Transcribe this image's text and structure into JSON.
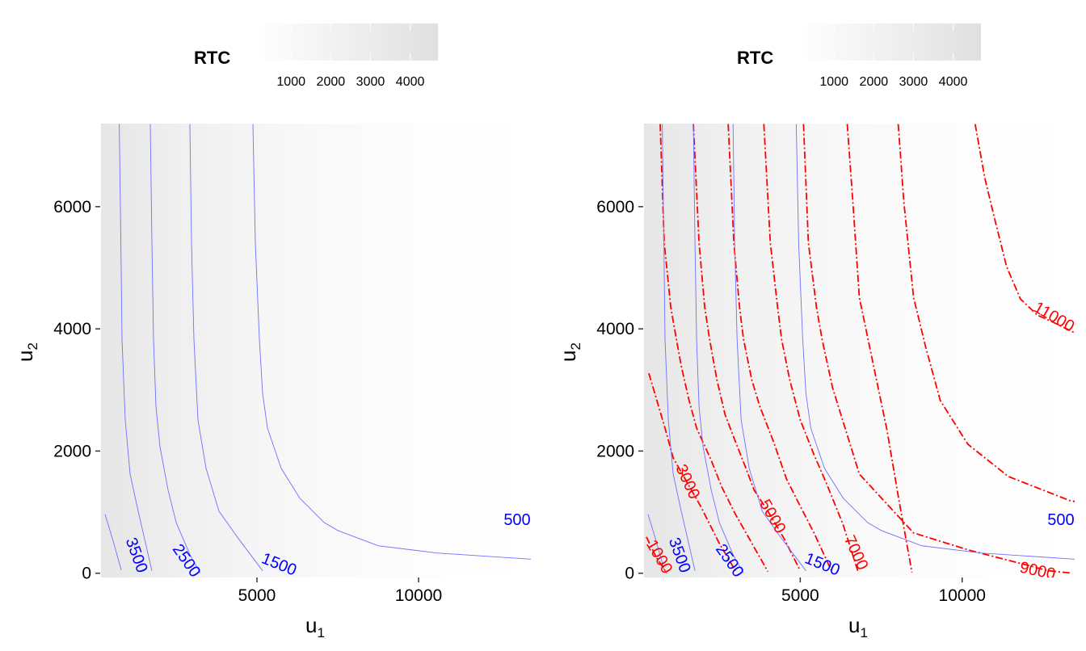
{
  "chart_data": [
    {
      "type": "contour",
      "legend": {
        "title": "RTC",
        "ticks": [
          "1000",
          "2000",
          "3000",
          "4000"
        ],
        "range": [
          100,
          4700
        ],
        "low_color": "#ffffff",
        "high_color": "#e0e0e0",
        "placement": "top"
      },
      "xlabel": {
        "text": "u",
        "sub": "1"
      },
      "ylabel": {
        "text": "u",
        "sub": "2"
      },
      "xlim": [
        175,
        13475
      ],
      "ylim": [
        -70,
        7360
      ],
      "xticks": [
        {
          "v": 5000,
          "label": "5000"
        },
        {
          "v": 10000,
          "label": "10000"
        }
      ],
      "yticks": [
        {
          "v": 0,
          "label": "0"
        },
        {
          "v": 2000,
          "label": "2000"
        },
        {
          "v": 4000,
          "label": "4000"
        },
        {
          "v": 6000,
          "label": "6000"
        }
      ],
      "grid": false,
      "blue_color": "#7070ff",
      "blue_contours": [
        [
          [
            300,
            964
          ],
          [
            550,
            528
          ],
          [
            800,
            53
          ]
        ],
        [
          [
            740,
            7352
          ],
          [
            790,
            5400
          ],
          [
            825,
            3828
          ],
          [
            925,
            2508
          ],
          [
            1075,
            1624
          ],
          [
            1325,
            1016
          ],
          [
            1750,
            40
          ]
        ],
        [
          [
            1700,
            7352
          ],
          [
            1750,
            5400
          ],
          [
            1800,
            3828
          ],
          [
            1875,
            2732
          ],
          [
            2000,
            2072
          ],
          [
            2250,
            1360
          ],
          [
            2500,
            832
          ],
          [
            2925,
            304
          ],
          [
            3250,
            0
          ]
        ],
        [
          [
            2925,
            7352
          ],
          [
            2975,
            5400
          ],
          [
            3050,
            3828
          ],
          [
            3175,
            2508
          ],
          [
            3425,
            1716
          ],
          [
            3825,
            1016
          ],
          [
            4425,
            568
          ],
          [
            5175,
            40
          ]
        ],
        [
          [
            4875,
            7352
          ],
          [
            4950,
            5400
          ],
          [
            5075,
            3828
          ],
          [
            5175,
            2944
          ],
          [
            5325,
            2376
          ],
          [
            5750,
            1716
          ],
          [
            6325,
            1228
          ],
          [
            7075,
            832
          ],
          [
            7500,
            700
          ],
          [
            8750,
            449
          ],
          [
            10575,
            330
          ],
          [
            13475,
            230
          ]
        ]
      ],
      "blue_labels": [
        {
          "text": "3500",
          "at": [
            1250,
            290
          ]
        },
        {
          "text": "2500",
          "at": [
            2800,
            198
          ]
        },
        {
          "text": "1500",
          "at": [
            5675,
            132
          ]
        },
        {
          "text": "500",
          "at": [
            13050,
            858
          ]
        }
      ]
    },
    {
      "type": "contour",
      "legend": {
        "title": "RTC",
        "ticks": [
          "1000",
          "2000",
          "3000",
          "4000"
        ],
        "range": [
          100,
          4700
        ],
        "low_color": "#ffffff",
        "high_color": "#e0e0e0",
        "placement": "top"
      },
      "xlabel": {
        "text": "u",
        "sub": "1"
      },
      "ylabel": {
        "text": "u",
        "sub": "2"
      },
      "xlim": [
        175,
        13475
      ],
      "ylim": [
        -70,
        7360
      ],
      "xticks": [
        {
          "v": 5000,
          "label": "5000"
        },
        {
          "v": 10000,
          "label": "10000"
        }
      ],
      "yticks": [
        {
          "v": 0,
          "label": "0"
        },
        {
          "v": 2000,
          "label": "2000"
        },
        {
          "v": 4000,
          "label": "4000"
        },
        {
          "v": 6000,
          "label": "6000"
        }
      ],
      "grid": false,
      "blue_color": "#7070ff",
      "red_color": "#ff0000",
      "blue_contours": [
        [
          [
            300,
            964
          ],
          [
            550,
            528
          ],
          [
            800,
            53
          ]
        ],
        [
          [
            740,
            7352
          ],
          [
            790,
            5400
          ],
          [
            825,
            3828
          ],
          [
            925,
            2508
          ],
          [
            1075,
            1624
          ],
          [
            1325,
            1016
          ],
          [
            1750,
            40
          ]
        ],
        [
          [
            1700,
            7352
          ],
          [
            1750,
            5400
          ],
          [
            1800,
            3828
          ],
          [
            1875,
            2732
          ],
          [
            2000,
            2072
          ],
          [
            2250,
            1360
          ],
          [
            2500,
            832
          ],
          [
            2925,
            304
          ],
          [
            3250,
            0
          ]
        ],
        [
          [
            2925,
            7352
          ],
          [
            2975,
            5400
          ],
          [
            3050,
            3828
          ],
          [
            3175,
            2508
          ],
          [
            3425,
            1716
          ],
          [
            3825,
            1016
          ],
          [
            4425,
            568
          ],
          [
            5175,
            40
          ]
        ],
        [
          [
            4875,
            7352
          ],
          [
            4950,
            5400
          ],
          [
            5075,
            3828
          ],
          [
            5175,
            2944
          ],
          [
            5325,
            2376
          ],
          [
            5750,
            1716
          ],
          [
            6325,
            1228
          ],
          [
            7075,
            832
          ],
          [
            7500,
            700
          ],
          [
            8750,
            449
          ],
          [
            10575,
            330
          ],
          [
            13475,
            230
          ]
        ]
      ],
      "blue_labels": [
        {
          "text": "3500",
          "at": [
            1250,
            290
          ]
        },
        {
          "text": "2500",
          "at": [
            2800,
            198
          ]
        },
        {
          "text": "1500",
          "at": [
            5675,
            132
          ]
        },
        {
          "text": "500",
          "at": [
            13050,
            858
          ]
        }
      ],
      "red_contours": [
        [
          [
            250,
            594
          ],
          [
            550,
            264
          ],
          [
            875,
            0
          ]
        ],
        [
          [
            325,
            3274
          ],
          [
            825,
            2376
          ],
          [
            1075,
            1888
          ],
          [
            1500,
            1492
          ],
          [
            1925,
            1096
          ],
          [
            2500,
            488
          ],
          [
            3000,
            40
          ]
        ],
        [
          [
            675,
            7352
          ],
          [
            800,
            5412
          ],
          [
            1000,
            4356
          ],
          [
            1175,
            3828
          ],
          [
            1325,
            3392
          ],
          [
            1550,
            2864
          ],
          [
            1800,
            2376
          ],
          [
            2250,
            1848
          ],
          [
            2575,
            1412
          ],
          [
            3000,
            964
          ],
          [
            3425,
            568
          ],
          [
            4000,
            26
          ]
        ],
        [
          [
            1700,
            7352
          ],
          [
            1875,
            5412
          ],
          [
            2050,
            4356
          ],
          [
            2200,
            3828
          ],
          [
            2425,
            3168
          ],
          [
            2675,
            2600
          ],
          [
            3000,
            2152
          ],
          [
            3325,
            1716
          ],
          [
            3575,
            1360
          ],
          [
            4000,
            1016
          ],
          [
            4500,
            568
          ],
          [
            5000,
            40
          ]
        ],
        [
          [
            2775,
            7352
          ],
          [
            2950,
            5412
          ],
          [
            3125,
            4356
          ],
          [
            3250,
            3828
          ],
          [
            3500,
            3168
          ],
          [
            3750,
            2732
          ],
          [
            4175,
            2152
          ],
          [
            4575,
            1544
          ],
          [
            5000,
            1096
          ],
          [
            5425,
            660
          ],
          [
            6000,
            0
          ]
        ],
        [
          [
            3875,
            7352
          ],
          [
            4075,
            5412
          ],
          [
            4300,
            4356
          ],
          [
            4425,
            3828
          ],
          [
            4675,
            3168
          ],
          [
            5000,
            2508
          ],
          [
            5425,
            1940
          ],
          [
            5825,
            1452
          ],
          [
            6325,
            792
          ],
          [
            6800,
            0
          ]
        ],
        [
          [
            5100,
            7352
          ],
          [
            5250,
            5412
          ],
          [
            5500,
            4356
          ],
          [
            5675,
            3828
          ],
          [
            6000,
            3036
          ],
          [
            6825,
            1624
          ],
          [
            8500,
            660
          ],
          [
            10175,
            383
          ],
          [
            12675,
            40
          ],
          [
            13400,
            0
          ]
        ],
        [
          [
            6450,
            7352
          ],
          [
            6625,
            6072
          ],
          [
            6825,
            4514
          ],
          [
            7250,
            3432
          ],
          [
            7675,
            2350
          ],
          [
            8050,
            1188
          ],
          [
            8450,
            13
          ]
        ],
        [
          [
            8025,
            7352
          ],
          [
            8200,
            6072
          ],
          [
            8500,
            4514
          ],
          [
            8875,
            3696
          ],
          [
            9325,
            2825
          ],
          [
            10175,
            2112
          ],
          [
            11425,
            1584
          ],
          [
            13325,
            1188
          ],
          [
            13475,
            1175
          ]
        ],
        [
          [
            10400,
            7352
          ],
          [
            10700,
            6468
          ],
          [
            11000,
            5808
          ],
          [
            11375,
            5016
          ],
          [
            11800,
            4488
          ],
          [
            12325,
            4224
          ],
          [
            12875,
            4092
          ],
          [
            13475,
            3934
          ]
        ]
      ],
      "red_labels": [
        {
          "text": "1000",
          "at": [
            625,
            264
          ]
        },
        {
          "text": "3000",
          "at": [
            1500,
            1492
          ]
        },
        {
          "text": "5000",
          "at": [
            4125,
            924
          ]
        },
        {
          "text": "7000",
          "at": [
            6700,
            330
          ]
        },
        {
          "text": "9000",
          "at": [
            12325,
            26
          ]
        },
        {
          "text": "11000",
          "at": [
            12825,
            4184
          ]
        }
      ]
    }
  ]
}
